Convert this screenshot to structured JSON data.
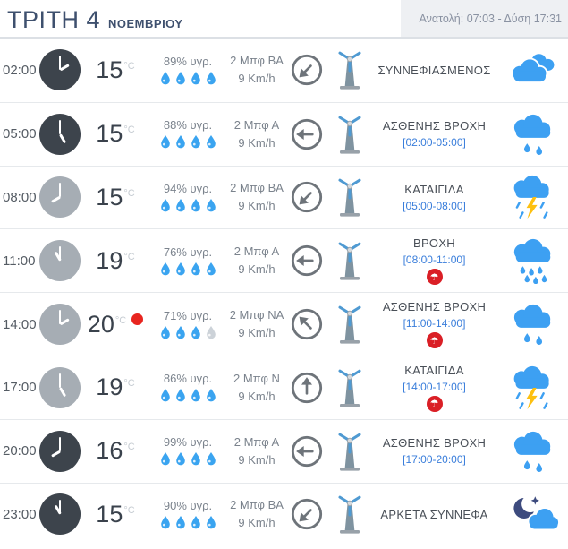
{
  "header": {
    "day": "ΤΡΙΤΗ 4",
    "month": "ΝΟΕΜΒΡΙΟΥ",
    "sun_info": "Ανατολή: 07:03  - Δύση 17:31"
  },
  "icons": {
    "umbrella_glyph": "☂"
  },
  "colors": {
    "icon_blue": "#3da0f2",
    "night_navy": "#3d4b7e",
    "bolt_yellow": "#fdc010",
    "alert_red": "#da1f26",
    "drop_blue": "#3aa4f0",
    "drop_gray": "#ccd2d8",
    "arrow_gray": "#6e747a",
    "blade_blue": "#4f9ad2",
    "pole_gray": "#7f93a0",
    "range_blue": "#3a7edb"
  },
  "rows": [
    {
      "time": "02:00",
      "clock_variant": "dark",
      "clock_hour": 2,
      "temp": "15",
      "temp_unit": "°C",
      "max_marker": false,
      "humidity": "89% υγρ.",
      "drops": [
        1,
        1,
        1,
        1
      ],
      "wind_bft": "2 Μπφ ΒΑ",
      "wind_kmh": "9 Km/h",
      "wind_dir_deg": 225,
      "description": "ΣΥΝΝΕΦΙΑΣΜΕΝΟΣ",
      "range": "",
      "alert": false,
      "icon": "cloudy"
    },
    {
      "time": "05:00",
      "clock_variant": "dark",
      "clock_hour": 5,
      "temp": "15",
      "temp_unit": "°C",
      "max_marker": false,
      "humidity": "88% υγρ.",
      "drops": [
        1,
        1,
        1,
        1
      ],
      "wind_bft": "2 Μπφ Α",
      "wind_kmh": "9 Km/h",
      "wind_dir_deg": 270,
      "description": "ΑΣΘΕΝΗΣ ΒΡΟΧΗ",
      "range": "[02:00-05:00]",
      "alert": false,
      "icon": "light-rain"
    },
    {
      "time": "08:00",
      "clock_variant": "light",
      "clock_hour": 8,
      "temp": "15",
      "temp_unit": "°C",
      "max_marker": false,
      "humidity": "94% υγρ.",
      "drops": [
        1,
        1,
        1,
        1
      ],
      "wind_bft": "2 Μπφ ΒΑ",
      "wind_kmh": "9 Km/h",
      "wind_dir_deg": 225,
      "description": "ΚΑΤΑΙΓΙΔΑ",
      "range": "[05:00-08:00]",
      "alert": false,
      "icon": "storm"
    },
    {
      "time": "11:00",
      "clock_variant": "light",
      "clock_hour": 11,
      "temp": "19",
      "temp_unit": "°C",
      "max_marker": false,
      "humidity": "76% υγρ.",
      "drops": [
        1,
        1,
        1,
        1
      ],
      "wind_bft": "2 Μπφ Α",
      "wind_kmh": "9 Km/h",
      "wind_dir_deg": 270,
      "description": "ΒΡΟΧΗ",
      "range": "[08:00-11:00]",
      "alert": true,
      "icon": "rain"
    },
    {
      "time": "14:00",
      "clock_variant": "light",
      "clock_hour": 2,
      "temp": "20",
      "temp_unit": "°C",
      "max_marker": true,
      "humidity": "71% υγρ.",
      "drops": [
        1,
        1,
        1,
        0
      ],
      "wind_bft": "2 Μπφ ΝΑ",
      "wind_kmh": "9 Km/h",
      "wind_dir_deg": 315,
      "description": "ΑΣΘΕΝΗΣ ΒΡΟΧΗ",
      "range": "[11:00-14:00]",
      "alert": true,
      "icon": "light-rain"
    },
    {
      "time": "17:00",
      "clock_variant": "light",
      "clock_hour": 5,
      "temp": "19",
      "temp_unit": "°C",
      "max_marker": false,
      "humidity": "86% υγρ.",
      "drops": [
        1,
        1,
        1,
        1
      ],
      "wind_bft": "2 Μπφ Ν",
      "wind_kmh": "9 Km/h",
      "wind_dir_deg": 0,
      "description": "ΚΑΤΑΙΓΙΔΑ",
      "range": "[14:00-17:00]",
      "alert": true,
      "icon": "storm"
    },
    {
      "time": "20:00",
      "clock_variant": "dark",
      "clock_hour": 8,
      "temp": "16",
      "temp_unit": "°C",
      "max_marker": false,
      "humidity": "99% υγρ.",
      "drops": [
        1,
        1,
        1,
        1
      ],
      "wind_bft": "2 Μπφ Α",
      "wind_kmh": "9 Km/h",
      "wind_dir_deg": 270,
      "description": "ΑΣΘΕΝΗΣ ΒΡΟΧΗ",
      "range": "[17:00-20:00]",
      "alert": false,
      "icon": "light-rain"
    },
    {
      "time": "23:00",
      "clock_variant": "dark",
      "clock_hour": 11,
      "temp": "15",
      "temp_unit": "°C",
      "max_marker": false,
      "humidity": "90% υγρ.",
      "drops": [
        1,
        1,
        1,
        1
      ],
      "wind_bft": "2 Μπφ ΒΑ",
      "wind_kmh": "9 Km/h",
      "wind_dir_deg": 225,
      "description": "ΑΡΚΕΤΑ ΣΥΝΝΕΦΑ",
      "range": "",
      "alert": false,
      "icon": "night-cloudy"
    }
  ]
}
